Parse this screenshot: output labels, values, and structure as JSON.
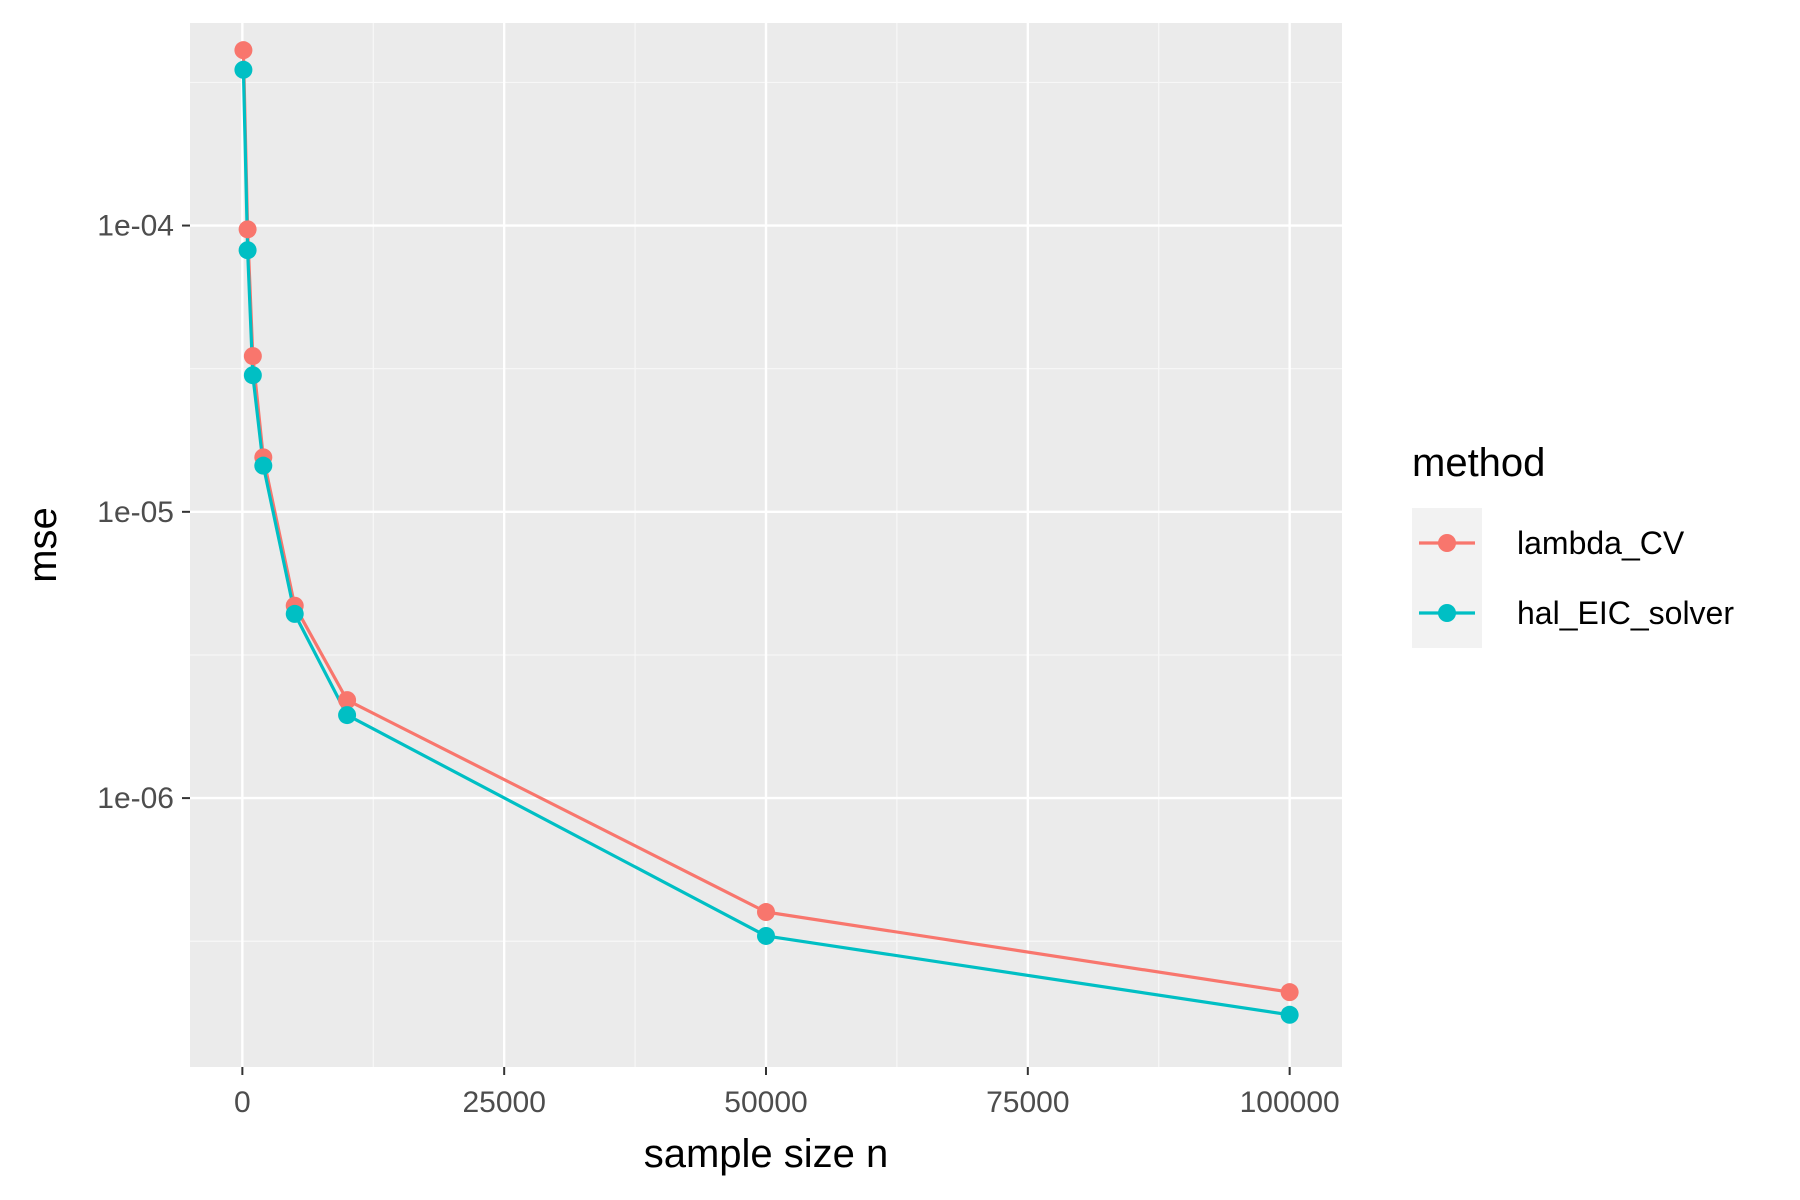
{
  "chart_data": {
    "type": "line",
    "title": "",
    "xlabel": "sample size n",
    "ylabel": "mse",
    "y_scale": "log10",
    "xlim": [
      -5000,
      105000
    ],
    "ylim": [
      1.15e-07,
      0.00051
    ],
    "x_ticks": [
      0,
      25000,
      50000,
      75000,
      100000
    ],
    "x_tick_labels": [
      "0",
      "25000",
      "50000",
      "75000",
      "100000"
    ],
    "y_ticks": [
      0.0001,
      1e-05,
      1e-06
    ],
    "y_tick_labels": [
      "1e-04",
      "1e-05",
      "1e-06"
    ],
    "grid": true,
    "legend_position": "right",
    "legend_title": "method",
    "series": [
      {
        "name": "lambda_CV",
        "color": "#F8766D",
        "x": [
          100,
          500,
          1000,
          2000,
          5000,
          10000,
          50000,
          100000
        ],
        "y": [
          0.00041,
          9.7e-05,
          3.5e-05,
          1.55e-05,
          4.7e-06,
          2.2e-06,
          4e-07,
          2.1e-07
        ]
      },
      {
        "name": "hal_EIC_solver",
        "color": "#00BFC4",
        "x": [
          100,
          500,
          1000,
          2000,
          5000,
          10000,
          50000,
          100000
        ],
        "y": [
          0.00035,
          8.2e-05,
          3e-05,
          1.45e-05,
          4.4e-06,
          1.95e-06,
          3.3e-07,
          1.75e-07
        ]
      }
    ]
  }
}
